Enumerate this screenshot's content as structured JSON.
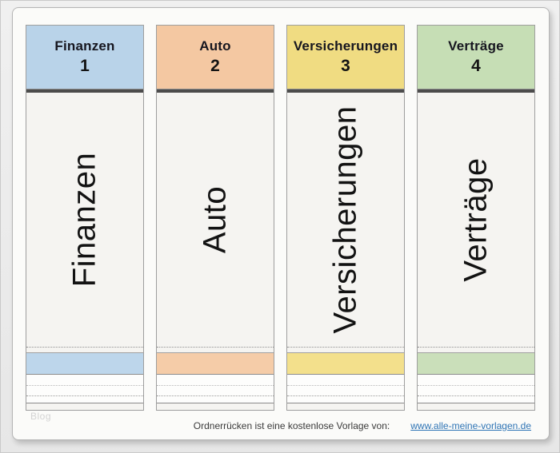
{
  "document": {
    "watermark": "Blog",
    "footer": {
      "credit_text": "Ordnerrücken ist eine kostenlose Vorlage von:",
      "credit_link": "www.alle-meine-vorlagen.de"
    }
  },
  "labels": [
    {
      "title": "Finanzen",
      "number": "1",
      "spine_text": "Finanzen",
      "header_color": "#b9d3e9",
      "band_color": "#bdd6eb"
    },
    {
      "title": "Auto",
      "number": "2",
      "spine_text": "Auto",
      "header_color": "#f4c8a2",
      "band_color": "#f5cca8"
    },
    {
      "title": "Versicherungen",
      "number": "3",
      "spine_text": "Versicherungen",
      "header_color": "#f0dc82",
      "band_color": "#f3e08c"
    },
    {
      "title": "Verträge",
      "number": "4",
      "spine_text": "Verträge",
      "header_color": "#c6deb5",
      "band_color": "#cadfba"
    }
  ],
  "colors": {
    "link": "#2e74b5",
    "dark_bar": "#4c4c4c",
    "page_background": "#fbfbf9",
    "label_body": "#f5f4f1",
    "outer_background": "#e9e9e9"
  }
}
